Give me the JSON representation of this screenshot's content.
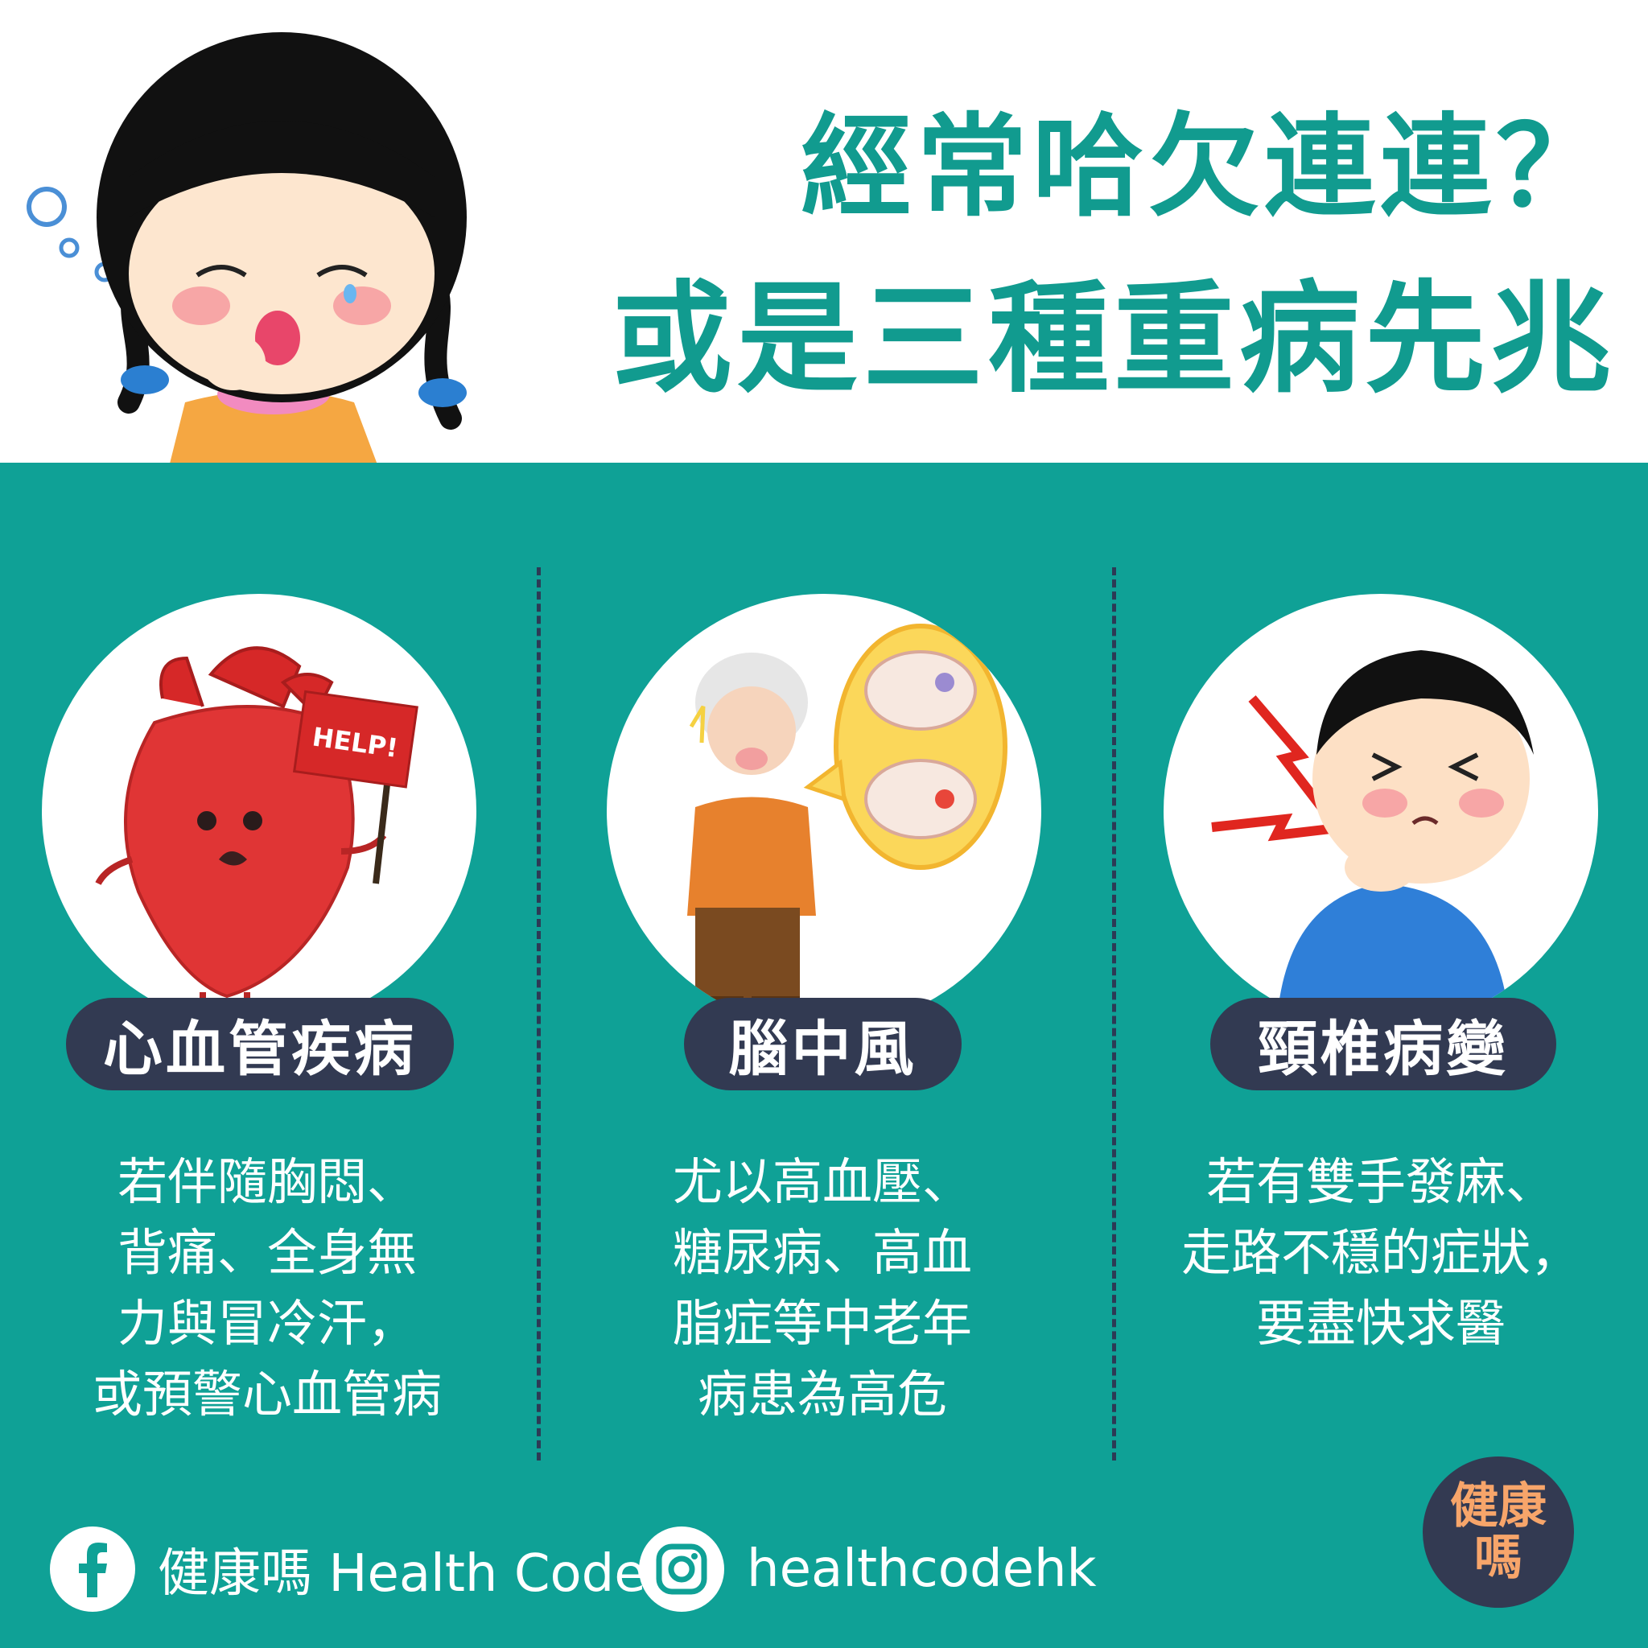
{
  "title": {
    "line1": "經常哈欠連連？",
    "line2": "或是三種重病先兆"
  },
  "sections": [
    {
      "label": "心血管疾病",
      "sign_text": "HELP!",
      "lines": [
        "若伴隨胸悶、",
        "背痛、全身無",
        "力與冒冷汗，",
        "或預警心血管病"
      ]
    },
    {
      "label": "腦中風",
      "lines": [
        "尤以高血壓、",
        "糖尿病、高血",
        "脂症等中老年",
        "病患為高危"
      ]
    },
    {
      "label": "頸椎病變",
      "lines": [
        "若有雙手發麻、",
        "走路不穩的症狀，",
        "要盡快求醫"
      ]
    }
  ],
  "footer": {
    "facebook_text": "健康嗎 Health Code",
    "instagram_text": "healthcodehk"
  },
  "logo": {
    "line1": "健康",
    "line2": "嗎"
  },
  "colors": {
    "teal": "#0fa196",
    "title": "#119b8f",
    "pill": "#323a52",
    "logo_text": "#f7a56a"
  }
}
